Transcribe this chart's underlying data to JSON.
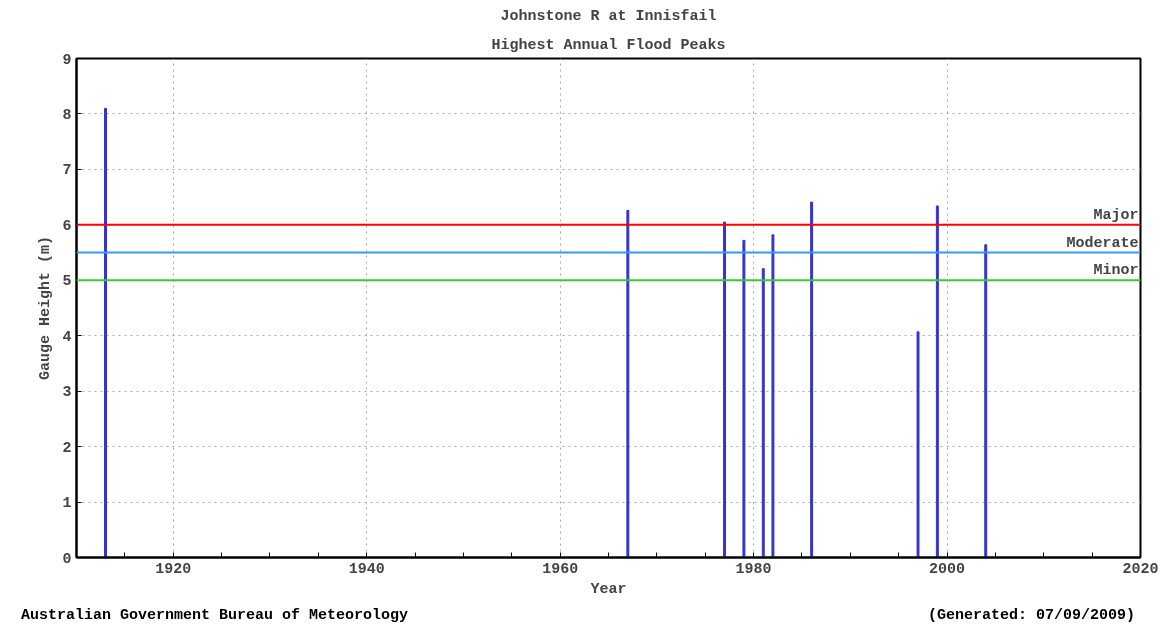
{
  "chart_data": {
    "type": "bar",
    "title": "Johnstone R at Innisfail",
    "subtitle": "Highest Annual Flood Peaks",
    "xlabel": "Year",
    "ylabel": "Gauge Height (m)",
    "x": [
      1913,
      1967,
      1977,
      1979,
      1981,
      1982,
      1986,
      1997,
      1999,
      2004
    ],
    "values": [
      8.1,
      6.26,
      6.05,
      5.72,
      5.21,
      5.82,
      6.41,
      4.07,
      6.34,
      5.64
    ],
    "color": "#3333cc",
    "xlim": [
      1910,
      2020
    ],
    "xticks": [
      {
        "value": 1915,
        "label": null
      },
      1920,
      {
        "value": 1925,
        "label": null
      },
      1940,
      {
        "value": 1935,
        "label": null
      },
      {
        "value": 1930,
        "label": null
      },
      {
        "value": 1945,
        "label": null
      },
      1960,
      {
        "value": 1950,
        "label": null
      },
      {
        "value": 1955,
        "label": null
      },
      {
        "value": 1965,
        "label": null
      },
      1980,
      {
        "value": 1970,
        "label": null
      },
      {
        "value": 1975,
        "label": null
      },
      {
        "value": 1985,
        "label": null
      },
      2000,
      {
        "value": 1990,
        "label": null
      },
      {
        "value": 1995,
        "label": null
      },
      {
        "value": 2005,
        "label": null
      },
      {
        "value": 2010,
        "label": null
      },
      {
        "value": 2015,
        "label": null
      },
      2020
    ],
    "ylim": [
      0,
      9
    ],
    "yticks": [
      0,
      1,
      2,
      3,
      4,
      5,
      6,
      7,
      8,
      9
    ],
    "grid": true,
    "ref_lines": [
      {
        "axis": "y",
        "value": 6,
        "label": "Major",
        "color": "#ff0000"
      },
      {
        "axis": "y",
        "value": 5.5,
        "label": "Moderate",
        "color": "#3399ff"
      },
      {
        "axis": "y",
        "value": 5,
        "label": "Minor",
        "color": "#33cc33"
      }
    ],
    "annotations": [
      "Australian Government Bureau of Meteorology",
      "(Generated: 07/09/2009)"
    ]
  }
}
